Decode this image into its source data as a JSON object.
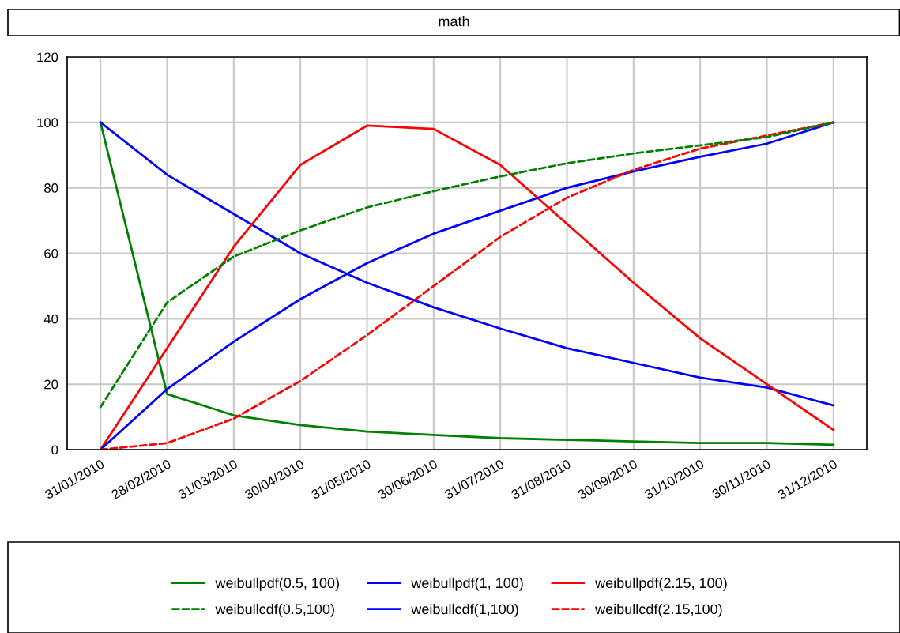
{
  "chart_data": {
    "type": "line",
    "title": "math",
    "categories": [
      "31/01/2010",
      "28/02/2010",
      "31/03/2010",
      "30/04/2010",
      "31/05/2010",
      "30/06/2010",
      "31/07/2010",
      "31/08/2010",
      "30/09/2010",
      "31/10/2010",
      "30/11/2010",
      "31/12/2010"
    ],
    "series": [
      {
        "name": "weibullpdf(0.5, 100)",
        "color": "#008000",
        "line_style": "solid",
        "values": [
          100,
          17,
          10.5,
          7.5,
          5.5,
          4.5,
          3.5,
          3,
          2.5,
          2,
          2,
          1.5
        ]
      },
      {
        "name": "weibullpdf(1, 100)",
        "color": "#0000ff",
        "line_style": "solid",
        "values": [
          100,
          84,
          72,
          60,
          51,
          43.5,
          37,
          31,
          26.5,
          22,
          19,
          13.5
        ]
      },
      {
        "name": "weibullpdf(2.15, 100)",
        "color": "#ff0000",
        "line_style": "solid",
        "values": [
          0,
          31,
          62,
          87,
          99,
          98,
          87,
          69,
          51,
          34,
          20,
          6
        ]
      },
      {
        "name": "weibullcdf(0.5,100)",
        "color": "#008000",
        "line_style": "dashed",
        "values": [
          13,
          45,
          59,
          67,
          74,
          79,
          83.5,
          87.5,
          90.5,
          93,
          95.5,
          100
        ]
      },
      {
        "name": "weibullcdf(1,100)",
        "color": "#0000ff",
        "line_style": "solid",
        "values": [
          0,
          18.5,
          33,
          46,
          57,
          66,
          73,
          80,
          85,
          89.5,
          93.5,
          100
        ]
      },
      {
        "name": "weibullcdf(2.15,100)",
        "color": "#ff0000",
        "line_style": "dashed",
        "values": [
          0,
          2,
          9.5,
          21,
          35,
          50,
          65,
          77,
          85.5,
          92,
          96,
          100
        ]
      }
    ],
    "ylim": [
      0,
      120
    ],
    "yticks": [
      0,
      20,
      40,
      60,
      80,
      100,
      120
    ],
    "grid": true,
    "legend": "bottom",
    "marker": "none"
  }
}
